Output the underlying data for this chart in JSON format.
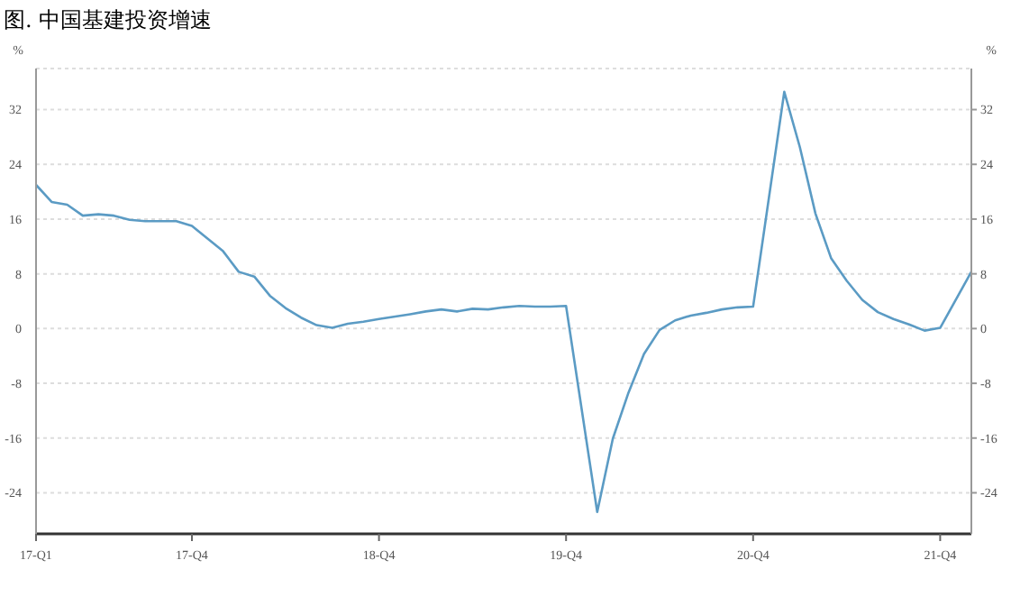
{
  "chart_data": {
    "type": "line",
    "title": "图. 中国基建投资增速",
    "categories": [
      "17-Q1",
      null,
      null,
      null,
      null,
      null,
      null,
      null,
      null,
      null,
      "17-Q4",
      null,
      null,
      null,
      null,
      null,
      null,
      null,
      null,
      null,
      null,
      null,
      "18-Q4",
      null,
      null,
      null,
      null,
      null,
      null,
      null,
      null,
      null,
      null,
      null,
      "19-Q4",
      null,
      null,
      null,
      null,
      null,
      null,
      null,
      null,
      null,
      null,
      null,
      "20-Q4",
      null,
      null,
      null,
      null,
      null,
      null,
      null,
      null,
      null,
      null,
      null,
      "21-Q4",
      null,
      null
    ],
    "series": [
      {
        "color": "#5b9bc4",
        "values": [
          21.0,
          18.5,
          18.1,
          16.5,
          16.7,
          16.5,
          15.9,
          15.7,
          15.7,
          15.7,
          15.0,
          null,
          11.3,
          8.3,
          7.6,
          4.8,
          3.0,
          1.6,
          0.5,
          0.1,
          0.7,
          1.0,
          1.4,
          null,
          2.1,
          2.5,
          2.8,
          2.5,
          2.9,
          2.8,
          3.1,
          3.3,
          3.2,
          3.2,
          3.3,
          null,
          -26.8,
          -16.1,
          -9.4,
          -3.7,
          -0.2,
          1.2,
          1.9,
          2.3,
          2.8,
          3.1,
          3.2,
          null,
          34.6,
          26.5,
          16.8,
          10.3,
          7.0,
          4.2,
          2.4,
          1.4,
          0.6,
          -0.3,
          0.1,
          null,
          8.3
        ]
      }
    ],
    "ylabel": "%",
    "y2label": "%",
    "ylim": [
      -30,
      38
    ],
    "yticks": [
      -24,
      -16,
      -8,
      0,
      8,
      16,
      24,
      32
    ],
    "y2lim": [
      -30,
      38
    ],
    "y2ticks": [
      -24,
      -16,
      -8,
      0,
      8,
      16,
      24,
      32
    ],
    "grid": "y",
    "marker": "none",
    "line_style": "solid"
  }
}
